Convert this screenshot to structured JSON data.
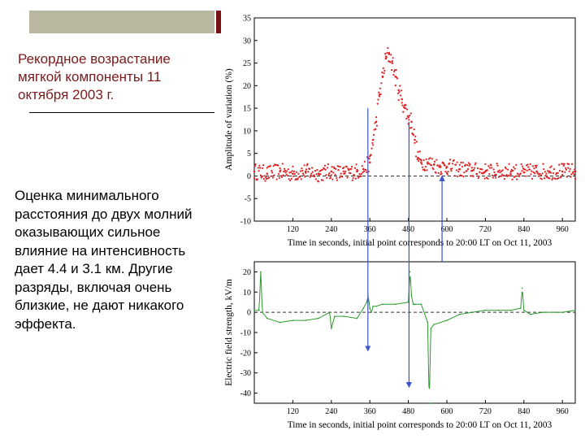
{
  "slide": {
    "title": "Рекордное возрастание мягкой компоненты 11 октября 2003 г.",
    "body": "Оценка минимального расстояния до двух молний оказывающих сильное влияние на интенсивность дает 4.4 и 3.1 км. Другие разряды, включая очень близкие, не дают никакого эффекта."
  },
  "chart_data": [
    {
      "type": "scatter",
      "ylabel": "Amplitude of variation (%)",
      "xlabel": "Time in seconds, initial point corresponds to 20:00 LT on Oct 11, 2003",
      "xlim": [
        0,
        1000
      ],
      "ylim": [
        -10,
        35
      ],
      "xticks": [
        120,
        240,
        360,
        480,
        600,
        720,
        840,
        960
      ],
      "yticks": [
        -10,
        -5,
        0,
        5,
        10,
        15,
        20,
        25,
        30,
        35
      ],
      "color": "#e02020",
      "reference_line": 0,
      "series": [
        {
          "x": [
            0,
            40,
            80,
            120,
            160,
            200,
            240,
            280,
            320,
            340,
            360,
            370,
            380,
            390,
            400,
            410,
            420,
            430,
            440,
            450,
            460,
            470,
            480,
            490,
            500,
            510,
            520,
            540,
            560,
            580,
            600,
            640,
            680,
            720,
            760,
            800,
            840,
            880,
            920,
            960,
            1000
          ],
          "y": [
            1,
            0.5,
            1,
            0.5,
            1,
            0.5,
            1,
            0.5,
            1,
            1.5,
            3,
            8,
            12,
            18,
            22,
            26,
            27,
            25,
            22,
            19,
            17,
            15,
            13,
            12,
            8,
            4,
            3,
            3,
            2.5,
            2,
            2,
            1.5,
            1.2,
            1,
            1,
            1,
            0.8,
            1,
            1,
            1,
            1
          ]
        }
      ]
    },
    {
      "type": "line",
      "ylabel": "Electric field strength, kV/m",
      "xlabel": "Time in seconds, initial point corresponds to 20:00 LT on Oct 11, 2003",
      "xlim": [
        0,
        1000
      ],
      "ylim": [
        -45,
        25
      ],
      "xticks": [
        120,
        240,
        360,
        480,
        600,
        720,
        840,
        960
      ],
      "yticks": [
        20,
        10,
        0,
        -10,
        -20,
        -30,
        -40
      ],
      "color": "#2a9a2a",
      "reference_line": 0,
      "series": [
        {
          "x": [
            0,
            15,
            20,
            25,
            40,
            80,
            120,
            160,
            200,
            235,
            240,
            250,
            280,
            320,
            340,
            350,
            355,
            360,
            365,
            370,
            380,
            400,
            440,
            480,
            485,
            490,
            495,
            500,
            520,
            540,
            545,
            550,
            560,
            600,
            640,
            680,
            720,
            760,
            800,
            830,
            835,
            840,
            860,
            900,
            940,
            960,
            1000
          ],
          "y": [
            1,
            1,
            20,
            0,
            -3,
            -5,
            -4,
            -4,
            -3,
            0,
            -8,
            -2,
            -2,
            -3,
            2,
            5,
            8,
            2,
            0,
            3,
            3,
            4,
            4,
            5,
            20,
            8,
            4,
            4,
            4,
            -5,
            -45,
            -8,
            -6,
            -4,
            -1,
            0,
            1,
            1,
            1,
            2,
            12,
            1,
            -1,
            0,
            0,
            0,
            1
          ]
        }
      ]
    }
  ]
}
